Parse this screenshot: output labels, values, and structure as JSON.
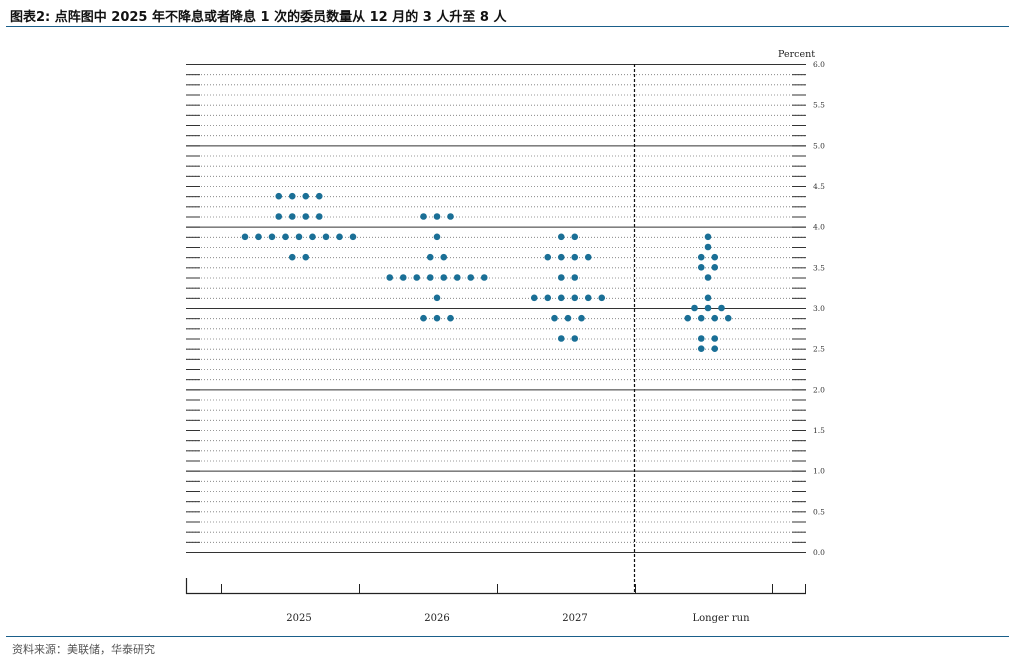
{
  "header": {
    "title": "图表2:  点阵图中 2025 年不降息或者降息 1 次的委员数量从 12 月的 3 人升至 8 人"
  },
  "footer": {
    "source": "资料来源：美联储，华泰研究"
  },
  "colors": {
    "dot": "#1a6f96",
    "rule": "#1a5f8a"
  },
  "chart_data": {
    "type": "scatter",
    "title": "",
    "unit_label": "Percent",
    "ylim": [
      0,
      6.0
    ],
    "y_ticks": [
      "6.0",
      "5.5",
      "5.0",
      "4.5",
      "4.0",
      "3.5",
      "3.0",
      "2.5",
      "2.0",
      "1.5",
      "1.0",
      "0.5",
      "0.0"
    ],
    "categories": [
      "2025",
      "2026",
      "2027",
      "Longer run"
    ],
    "legend": "none",
    "grid": "dotted horizontal lines every 0.125, solid every 1.0",
    "series": [
      {
        "category": "2025",
        "points": [
          {
            "y": 4.375,
            "count": 4
          },
          {
            "y": 4.125,
            "count": 4
          },
          {
            "y": 3.875,
            "count": 9
          },
          {
            "y": 3.625,
            "count": 2
          }
        ]
      },
      {
        "category": "2026",
        "points": [
          {
            "y": 4.125,
            "count": 3
          },
          {
            "y": 3.875,
            "count": 1
          },
          {
            "y": 3.625,
            "count": 2
          },
          {
            "y": 3.375,
            "count": 8
          },
          {
            "y": 3.125,
            "count": 1
          },
          {
            "y": 2.875,
            "count": 3
          }
        ]
      },
      {
        "category": "2027",
        "points": [
          {
            "y": 3.875,
            "count": 2
          },
          {
            "y": 3.625,
            "count": 4
          },
          {
            "y": 3.375,
            "count": 2
          },
          {
            "y": 3.125,
            "count": 6
          },
          {
            "y": 2.875,
            "count": 3
          },
          {
            "y": 2.625,
            "count": 2
          }
        ]
      },
      {
        "category": "Longer run",
        "points": [
          {
            "y": 3.875,
            "count": 1
          },
          {
            "y": 3.75,
            "count": 1
          },
          {
            "y": 3.625,
            "count": 2
          },
          {
            "y": 3.5,
            "count": 2
          },
          {
            "y": 3.375,
            "count": 1
          },
          {
            "y": 3.125,
            "count": 1
          },
          {
            "y": 3.0,
            "count": 3
          },
          {
            "y": 2.875,
            "count": 4
          },
          {
            "y": 2.625,
            "count": 2
          },
          {
            "y": 2.5,
            "count": 2
          }
        ]
      }
    ]
  }
}
